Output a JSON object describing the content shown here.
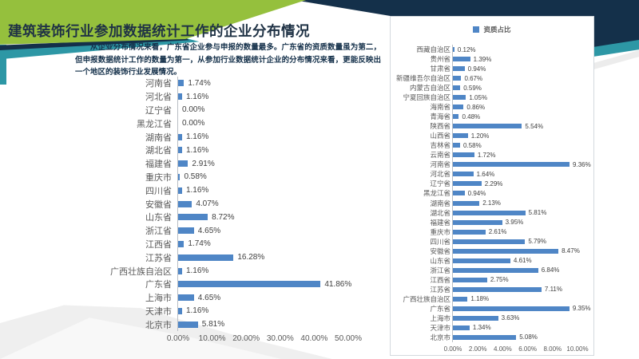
{
  "slide": {
    "title": "建筑装饰行业参加数据统计工作的企业分布情况",
    "body_text": "从企业分布情况来看，广东省企业参与申报的数量最多。广东省的资质数量虽为第二，但申报数据统计工作的数量为第一，从参加行业数据统计企业的分布情况来看，更能反映出一个地区的装饰行业发展情况。"
  },
  "colors": {
    "green_band": "#95c03d",
    "navy": "#14304a",
    "teal": "#2d97a5",
    "bar_blue": "#4f86c6",
    "title_text": "#1f3245",
    "body_text": "#14304a",
    "chart_label": "#595959",
    "chart_value": "#3f3f3f"
  },
  "chart_data": [
    {
      "type": "bar",
      "orientation": "horizontal",
      "legend": null,
      "xlim": [
        0,
        50
      ],
      "x_ticks": [
        "0.00%",
        "10.00%",
        "20.00%",
        "30.00%",
        "40.00%",
        "50.00%"
      ],
      "categories": [
        "河南省",
        "河北省",
        "辽宁省",
        "黑龙江省",
        "湖南省",
        "湖北省",
        "福建省",
        "重庆市",
        "四川省",
        "安徽省",
        "山东省",
        "浙江省",
        "江西省",
        "江苏省",
        "广西壮族自治区",
        "广东省",
        "上海市",
        "天津市",
        "北京市"
      ],
      "values": [
        1.74,
        1.16,
        0.0,
        0.0,
        1.16,
        1.16,
        2.91,
        0.58,
        1.16,
        4.07,
        8.72,
        4.65,
        1.74,
        16.28,
        1.16,
        41.86,
        4.65,
        1.16,
        5.81
      ],
      "value_labels": [
        "1.74%",
        "1.16%",
        "0.00%",
        "0.00%",
        "1.16%",
        "1.16%",
        "2.91%",
        "0.58%",
        "1.16%",
        "4.07%",
        "8.72%",
        "4.65%",
        "1.74%",
        "16.28%",
        "1.16%",
        "41.86%",
        "4.65%",
        "1.16%",
        "5.81%"
      ]
    },
    {
      "type": "bar",
      "orientation": "horizontal",
      "legend": "资质占比",
      "xlim": [
        0,
        10
      ],
      "x_ticks": [
        "0.00%",
        "2.00%",
        "4.00%",
        "6.00%",
        "8.00%",
        "10.00%"
      ],
      "categories": [
        "西藏自治区",
        "贵州省",
        "甘肃省",
        "新疆维吾尔自治区",
        "内蒙古自治区",
        "宁夏回族自治区",
        "海南省",
        "青海省",
        "陕西省",
        "山西省",
        "吉林省",
        "云南省",
        "河南省",
        "河北省",
        "辽宁省",
        "黑龙江省",
        "湖南省",
        "湖北省",
        "福建省",
        "重庆市",
        "四川省",
        "安徽省",
        "山东省",
        "浙江省",
        "江西省",
        "江苏省",
        "广西壮族自治区",
        "广东省",
        "上海市",
        "天津市",
        "北京市"
      ],
      "values": [
        0.12,
        1.39,
        0.94,
        0.67,
        0.59,
        1.05,
        0.86,
        0.48,
        5.54,
        1.2,
        0.58,
        1.72,
        9.36,
        1.64,
        2.29,
        0.94,
        2.13,
        5.81,
        3.95,
        2.61,
        5.79,
        8.47,
        4.61,
        6.84,
        2.75,
        7.11,
        1.18,
        9.35,
        3.63,
        1.34,
        5.08
      ],
      "value_labels": [
        "0.12%",
        "1.39%",
        "0.94%",
        "0.67%",
        "0.59%",
        "1.05%",
        "0.86%",
        "0.48%",
        "5.54%",
        "1.20%",
        "0.58%",
        "1.72%",
        "9.36%",
        "1.64%",
        "2.29%",
        "0.94%",
        "2.13%",
        "5.81%",
        "3.95%",
        "2.61%",
        "5.79%",
        "8.47%",
        "4.61%",
        "6.84%",
        "2.75%",
        "7.11%",
        "1.18%",
        "9.35%",
        "3.63%",
        "1.34%",
        "5.08%"
      ]
    }
  ]
}
